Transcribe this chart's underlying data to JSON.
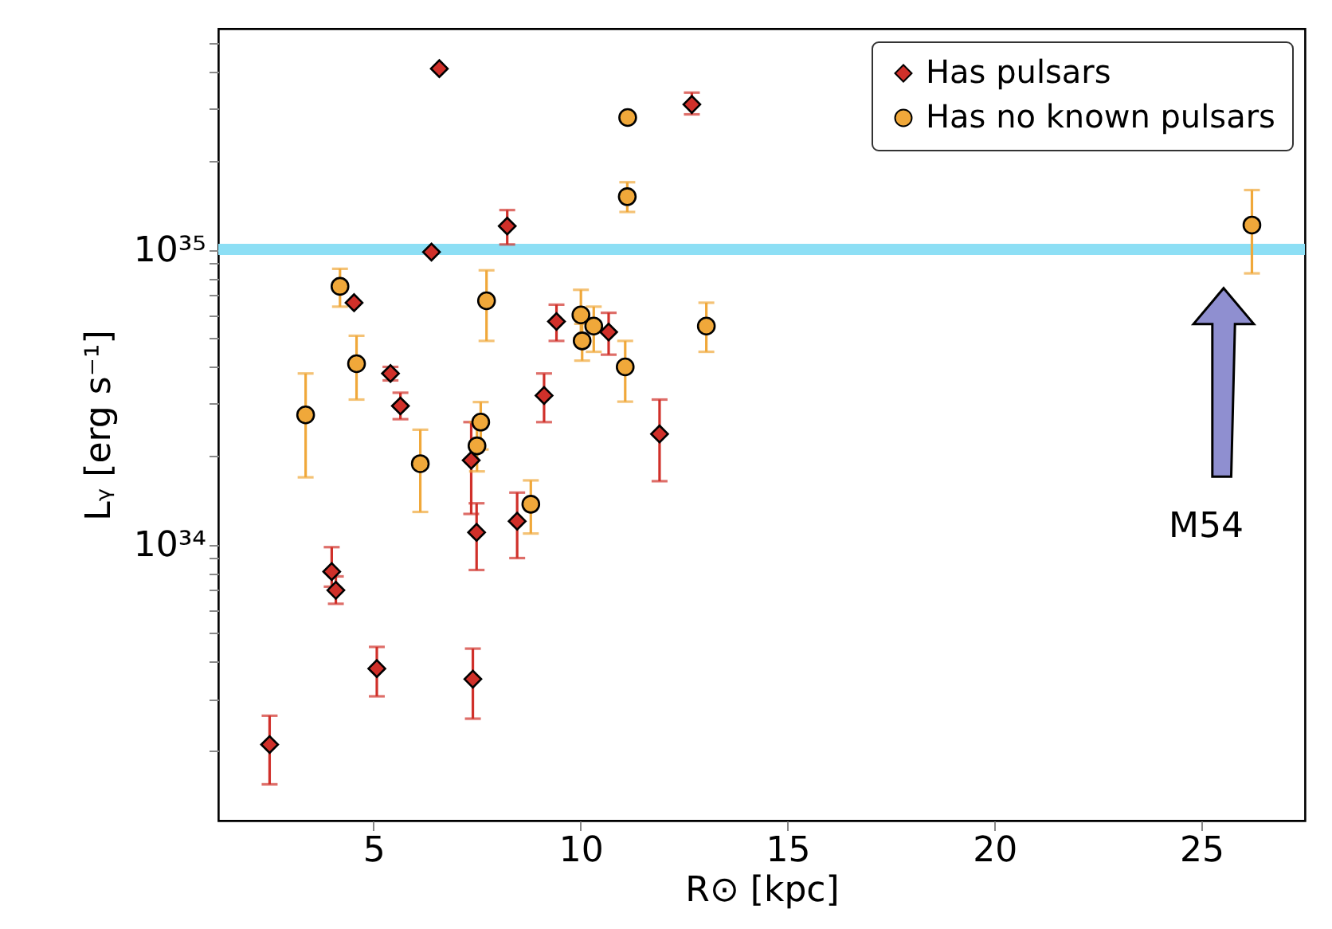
{
  "chart_data": {
    "type": "scatter",
    "xlabel": "R⊙ [kpc]",
    "ylabel": "Lᵧ [erg s⁻¹]",
    "xlim": [
      1.25,
      27.5
    ],
    "xticks": [
      5,
      10,
      15,
      20,
      25
    ],
    "ylim": [
      1.16e+33,
      5.6e+35
    ],
    "log": "y",
    "yticks": [
      {
        "value": 2e+33,
        "label": null
      },
      {
        "value": 3e+33,
        "label": null
      },
      {
        "value": 4e+33,
        "label": null
      },
      {
        "value": 5e+33,
        "label": null
      },
      {
        "value": 6e+33,
        "label": null
      },
      {
        "value": 7e+33,
        "label": null
      },
      {
        "value": 8e+33,
        "label": null
      },
      {
        "value": 9e+33,
        "label": null
      },
      {
        "value": 1e+34,
        "label": "10³⁴"
      },
      {
        "value": 2e+34,
        "label": null
      },
      {
        "value": 3e+34,
        "label": null
      },
      {
        "value": 4e+34,
        "label": null
      },
      {
        "value": 5e+34,
        "label": null
      },
      {
        "value": 6e+34,
        "label": null
      },
      {
        "value": 7e+34,
        "label": null
      },
      {
        "value": 8e+34,
        "label": null
      },
      {
        "value": 9e+34,
        "label": null
      },
      {
        "value": 1e+35,
        "label": "10³⁵"
      },
      {
        "value": 2e+35,
        "label": null
      },
      {
        "value": 3e+35,
        "label": null
      },
      {
        "value": 4e+35,
        "label": null
      },
      {
        "value": 5e+35,
        "label": null
      }
    ],
    "grid": false,
    "legend": "top right",
    "ref_lines": [
      {
        "axis": "y",
        "value": 1e+35,
        "color": "#8ddff5"
      }
    ],
    "annotations": [
      "M54"
    ],
    "series": [
      {
        "name": "Has pulsars",
        "color": "#d0302a",
        "marker": "diamond",
        "x": [
          6.59,
          12.69,
          8.23,
          6.4,
          4.53,
          9.42,
          10.68,
          5.41,
          5.65,
          9.12,
          11.91,
          7.36,
          8.47,
          7.49,
          3.99,
          4.09,
          5.08,
          7.4,
          2.49
        ],
        "values": [
          4.1e+35,
          3.1e+35,
          1.2e+35,
          9.8e+34,
          6.6e+34,
          5.7e+34,
          5.25e+34,
          3.8e+34,
          2.95e+34,
          3.2e+34,
          2.37e+34,
          1.93e+34,
          1.2e+34,
          1.1e+34,
          8.1e+33,
          7e+33,
          3.8e+33,
          3.5e+33,
          2.1e+33
        ],
        "errors": [
          null,
          [
            2.87e+35,
            3.4e+35
          ],
          [
            1.04e+35,
            1.36e+35
          ],
          null,
          null,
          [
            4.9e+34,
            6.5e+34
          ],
          [
            4.4e+34,
            6.1e+34
          ],
          [
            3.6e+34,
            4e+34
          ],
          [
            2.66e+34,
            3.27e+34
          ],
          [
            2.6e+34,
            3.8e+34
          ],
          [
            1.64e+34,
            3.1e+34
          ],
          [
            1.27e+34,
            2.6e+34
          ],
          [
            9e+33,
            1.5e+34
          ],
          [
            8.2e+33,
            1.38e+34
          ],
          [
            7.2e+33,
            9.8e+33
          ],
          [
            6.3e+33,
            7.8e+33
          ],
          [
            3.06e+33,
            4.5e+33
          ],
          [
            2.57e+33,
            4.44e+33
          ],
          [
            1.54e+33,
            2.63e+33
          ]
        ]
      },
      {
        "name": "Has no known pulsars",
        "color": "#f0a83a",
        "marker": "circle",
        "x": [
          11.14,
          11.13,
          26.22,
          4.19,
          7.73,
          10.01,
          10.32,
          13.04,
          10.04,
          4.59,
          11.08,
          3.36,
          7.59,
          7.5,
          6.13,
          8.8
        ],
        "values": [
          2.8e+35,
          1.51e+35,
          1.21e+35,
          7.5e+34,
          6.7e+34,
          6e+34,
          5.5e+34,
          5.5e+34,
          4.9e+34,
          4.1e+34,
          4e+34,
          2.75e+34,
          2.6e+34,
          2.16e+34,
          1.88e+34,
          1.37e+34
        ],
        "errors": [
          null,
          [
            1.34e+35,
            1.69e+35
          ],
          [
            8.3e+34,
            1.59e+35
          ],
          [
            6.4e+34,
            8.6e+34
          ],
          [
            4.9e+34,
            8.5e+34
          ],
          [
            5e+34,
            7.3e+34
          ],
          [
            4.5e+34,
            6.4e+34
          ],
          [
            4.5e+34,
            6.6e+34
          ],
          [
            4.2e+34,
            5.6e+34
          ],
          [
            3.1e+34,
            5.1e+34
          ],
          [
            3.05e+34,
            4.9e+34
          ],
          [
            1.69e+34,
            3.8e+34
          ],
          [
            2.1e+34,
            3.04e+34
          ],
          [
            1.77e+34,
            2.6e+34
          ],
          [
            1.29e+34,
            2.45e+34
          ],
          [
            1.09e+34,
            1.65e+34
          ]
        ]
      }
    ]
  }
}
